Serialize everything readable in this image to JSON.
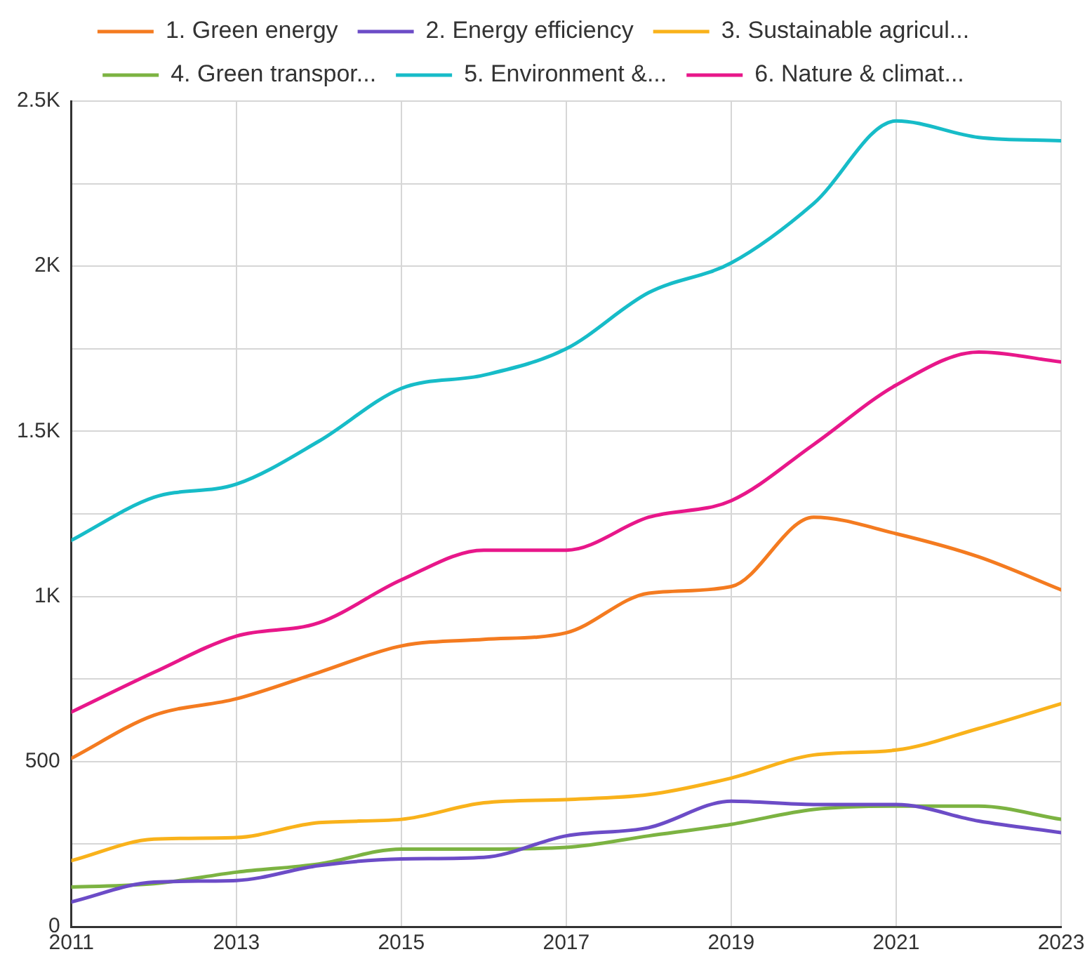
{
  "chart_data": {
    "type": "line",
    "x": [
      2011,
      2012,
      2013,
      2014,
      2015,
      2016,
      2017,
      2018,
      2019,
      2020,
      2021,
      2022,
      2023
    ],
    "xlim": [
      2011,
      2023
    ],
    "xticks": [
      2011,
      2013,
      2015,
      2017,
      2019,
      2021,
      2023
    ],
    "ylim": [
      0,
      2500
    ],
    "yticks": [
      0,
      {
        "value": 250,
        "label": null
      },
      500,
      {
        "value": 750,
        "label": null
      },
      {
        "value": 1000,
        "label": "1K"
      },
      {
        "value": 1250,
        "label": null
      },
      {
        "value": 1500,
        "label": "1.5K"
      },
      {
        "value": 1750,
        "label": null
      },
      {
        "value": 2000,
        "label": "2K"
      },
      {
        "value": 2250,
        "label": null
      },
      {
        "value": 2500,
        "label": "2.5K"
      }
    ],
    "grid": true,
    "legend": "top",
    "marker": "none",
    "line_style": "solid",
    "series": [
      {
        "name": "1. Green energy",
        "color": "#f47b20",
        "values": [
          510,
          640,
          690,
          770,
          850,
          870,
          890,
          1010,
          1030,
          1240,
          1190,
          1120,
          1020
        ]
      },
      {
        "name": "2. Energy efficiency",
        "color": "#6c4cc7",
        "values": [
          75,
          135,
          140,
          185,
          205,
          210,
          275,
          300,
          380,
          370,
          370,
          320,
          285
        ]
      },
      {
        "name": "3. Sustainable agricul...",
        "color": "#f9b21b",
        "values": [
          200,
          265,
          270,
          315,
          325,
          375,
          385,
          400,
          450,
          520,
          535,
          600,
          675
        ]
      },
      {
        "name": "4. Green transpor...",
        "color": "#7cb342",
        "values": [
          120,
          130,
          165,
          190,
          235,
          235,
          240,
          275,
          310,
          355,
          365,
          365,
          325
        ]
      },
      {
        "name": "5. Environment &...",
        "color": "#17bcc8",
        "values": [
          1170,
          1300,
          1340,
          1470,
          1630,
          1670,
          1750,
          1920,
          2010,
          2190,
          2440,
          2390,
          2380
        ]
      },
      {
        "name": "6. Nature & climat...",
        "color": "#e8178a",
        "values": [
          650,
          770,
          880,
          920,
          1050,
          1140,
          1140,
          1240,
          1290,
          1460,
          1640,
          1740,
          1710
        ]
      }
    ]
  }
}
